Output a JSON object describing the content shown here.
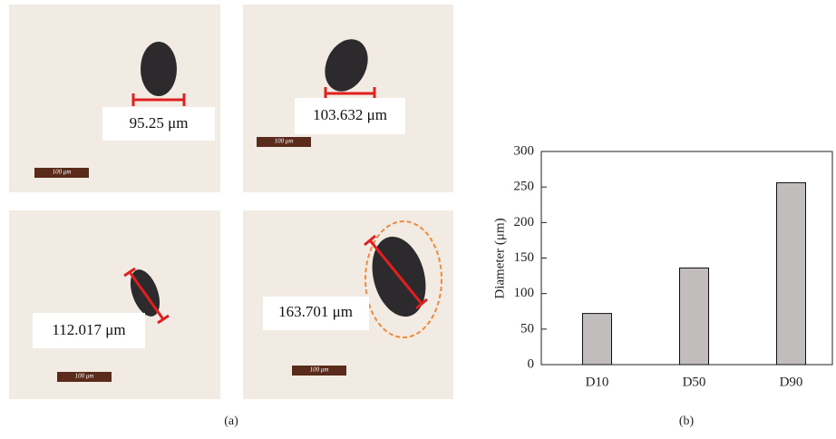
{
  "panel_a": {
    "measurements": [
      "95.25 μm",
      "103.632 μm",
      "112.017 μm",
      "163.701 μm"
    ],
    "scale_bars": [
      "100 μm",
      "100 μm",
      "100 μm",
      "100 μm"
    ],
    "caption": "(a)"
  },
  "chart_data": {
    "type": "bar",
    "y_label": "Diameter (μm)",
    "caption": "(b)",
    "categories": [
      "D10",
      "D50",
      "D90"
    ],
    "values": [
      72,
      136,
      256
    ],
    "color": "#c1bdbd",
    "ylim": [
      0,
      300
    ],
    "yticks": [
      0,
      50,
      100,
      150,
      200,
      250,
      300
    ],
    "grid": false
  }
}
